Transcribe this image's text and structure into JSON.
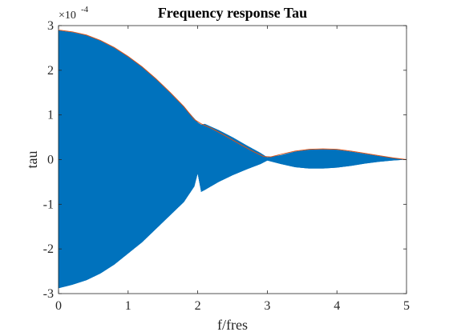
{
  "chart_data": {
    "type": "line",
    "title": "Frequency response Tau",
    "xlabel": "f/fres",
    "ylabel": "tau",
    "xlim": [
      0,
      5
    ],
    "ylim": [
      -3,
      3
    ],
    "y_multiplier_base": "×10",
    "y_multiplier_exponent": "-4",
    "x_ticks": [
      0,
      1,
      2,
      3,
      4,
      5
    ],
    "y_ticks": [
      -3,
      -2,
      -1,
      0,
      1,
      2,
      3
    ],
    "x_tick_labels": [
      "0",
      "1",
      "2",
      "3",
      "4",
      "5"
    ],
    "y_tick_labels": [
      "-3",
      "-2",
      "-1",
      "0",
      "1",
      "2",
      "3"
    ],
    "grid": false,
    "series": [
      {
        "role": "oscillating_response",
        "color": "#0072BD",
        "fill_between_envelope": true,
        "upper_x": [
          0,
          0.05,
          0.2,
          0.4,
          0.6,
          0.8,
          1.0,
          1.2,
          1.4,
          1.6,
          1.8,
          1.95,
          2.0,
          2.05,
          2.1,
          2.3,
          2.5,
          2.7,
          2.9,
          3.0,
          3.2,
          3.4,
          3.6,
          3.8,
          4.0,
          4.2,
          4.4,
          4.6,
          4.8,
          5.0
        ],
        "upper_y": [
          2.9,
          2.88,
          2.85,
          2.78,
          2.66,
          2.5,
          2.3,
          2.07,
          1.8,
          1.5,
          1.18,
          0.92,
          0.83,
          0.78,
          0.8,
          0.66,
          0.5,
          0.32,
          0.15,
          0.05,
          0.1,
          0.18,
          0.22,
          0.23,
          0.22,
          0.18,
          0.13,
          0.08,
          0.04,
          0.0
        ],
        "lower_x": [
          0,
          0.05,
          0.2,
          0.4,
          0.6,
          0.8,
          1.0,
          1.2,
          1.4,
          1.6,
          1.8,
          1.95,
          2.0,
          2.05,
          2.1,
          2.3,
          2.5,
          2.7,
          2.9,
          3.0,
          3.2,
          3.4,
          3.6,
          3.8,
          4.0,
          4.2,
          4.4,
          4.6,
          4.8,
          5.0
        ],
        "lower_y": [
          -2.88,
          -2.86,
          -2.8,
          -2.7,
          -2.55,
          -2.35,
          -2.1,
          -1.85,
          -1.55,
          -1.25,
          -0.95,
          -0.6,
          -0.3,
          -0.72,
          -0.68,
          -0.5,
          -0.35,
          -0.22,
          -0.1,
          -0.02,
          -0.1,
          -0.17,
          -0.2,
          -0.2,
          -0.18,
          -0.14,
          -0.09,
          -0.05,
          -0.02,
          0.0
        ]
      },
      {
        "role": "envelope",
        "color": "#D95319",
        "x": [
          0,
          0.05,
          0.2,
          0.4,
          0.6,
          0.8,
          1.0,
          1.2,
          1.4,
          1.6,
          1.8,
          1.95,
          2.05,
          2.2,
          2.4,
          2.6,
          2.8,
          2.95,
          3.05,
          3.2,
          3.4,
          3.6,
          3.8,
          4.0,
          4.2,
          4.4,
          4.6,
          4.8,
          5.0
        ],
        "y": [
          2.9,
          2.89,
          2.86,
          2.79,
          2.67,
          2.51,
          2.31,
          2.08,
          1.81,
          1.51,
          1.19,
          0.9,
          0.8,
          0.7,
          0.53,
          0.35,
          0.18,
          0.07,
          0.06,
          0.12,
          0.19,
          0.23,
          0.24,
          0.23,
          0.19,
          0.14,
          0.09,
          0.04,
          0.0
        ]
      }
    ]
  }
}
